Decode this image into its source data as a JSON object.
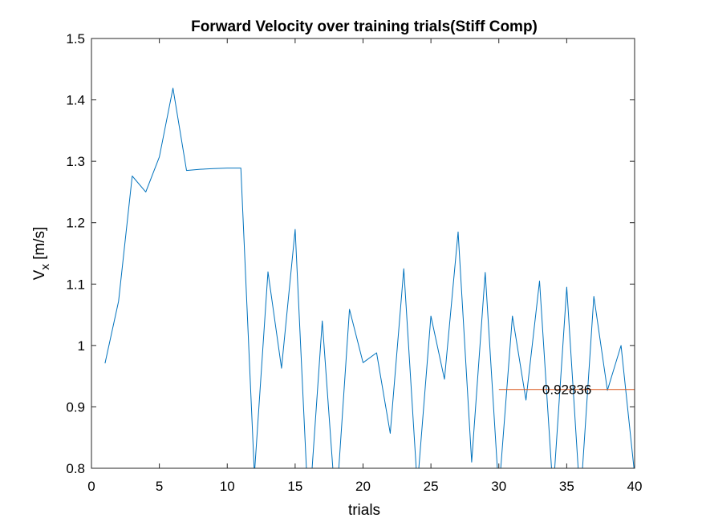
{
  "chart_data": {
    "type": "line",
    "title": "Forward Velocity over training trials(Stiff Comp)",
    "xlabel": "trials",
    "ylabel": {
      "base": "V",
      "subscript": "x",
      "unit": " [m/s]"
    },
    "xlim": [
      0,
      40
    ],
    "ylim": [
      0.8,
      1.5
    ],
    "xticks": [
      "0",
      "5",
      "10",
      "15",
      "20",
      "25",
      "30",
      "35",
      "40"
    ],
    "yticks": [
      "0.8",
      "0.9",
      "1",
      "1.1",
      "1.2",
      "1.3",
      "1.4",
      "1.5"
    ],
    "grid": false,
    "legend": null,
    "series": [
      {
        "color": "#0072BD",
        "x": [
          1,
          2,
          3,
          4,
          5,
          6,
          7,
          8,
          9,
          10,
          11,
          12,
          13,
          14,
          15,
          16,
          17,
          18,
          19,
          20,
          21,
          22,
          23,
          24,
          25,
          26,
          27,
          28,
          29,
          30,
          31,
          32,
          33,
          34,
          35,
          36,
          37,
          38,
          39,
          40
        ],
        "y": [
          0.971,
          1.072,
          1.276,
          1.25,
          1.307,
          1.419,
          1.285,
          1.287,
          1.288,
          1.289,
          1.289,
          0.79,
          1.12,
          0.963,
          1.189,
          0.72,
          1.04,
          0.73,
          1.059,
          0.972,
          0.988,
          0.857,
          1.125,
          0.77,
          1.048,
          0.945,
          1.185,
          0.81,
          1.119,
          0.76,
          1.048,
          0.911,
          1.105,
          0.76,
          1.095,
          0.745,
          1.08,
          0.927,
          1.0,
          0.79
        ]
      },
      {
        "color": "#D95319",
        "x": [
          30,
          40
        ],
        "y": [
          0.92836,
          0.92836
        ]
      }
    ],
    "annotations": [
      {
        "text": "0.92836",
        "x": 33.2,
        "y": 0.92836
      }
    ]
  }
}
